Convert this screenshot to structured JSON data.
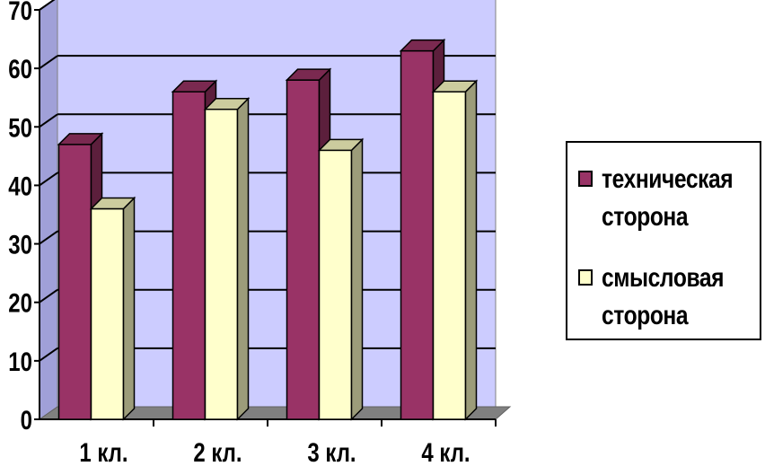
{
  "chart_data": {
    "type": "bar",
    "categories": [
      "1 кл.",
      "2 кл.",
      "3 кл.",
      "4 кл."
    ],
    "series": [
      {
        "name": "техническая сторона",
        "values": [
          47,
          56,
          58,
          63
        ],
        "color": "#993366",
        "side": "#5c1f3c",
        "top": "#7a2950"
      },
      {
        "name": "смысловая сторона",
        "values": [
          36,
          53,
          46,
          56
        ],
        "color": "#ffffcc",
        "side": "#9c9c7a",
        "top": "#cccc9e"
      }
    ],
    "title": "",
    "xlabel": "",
    "ylabel": "",
    "ylim": [
      0,
      70
    ],
    "yticks": [
      "0",
      "10",
      "20",
      "30",
      "40",
      "50",
      "60",
      "70"
    ],
    "grid": true,
    "legend_position": "right",
    "wall_color": "#ccccff",
    "floor_color": "#808080"
  }
}
